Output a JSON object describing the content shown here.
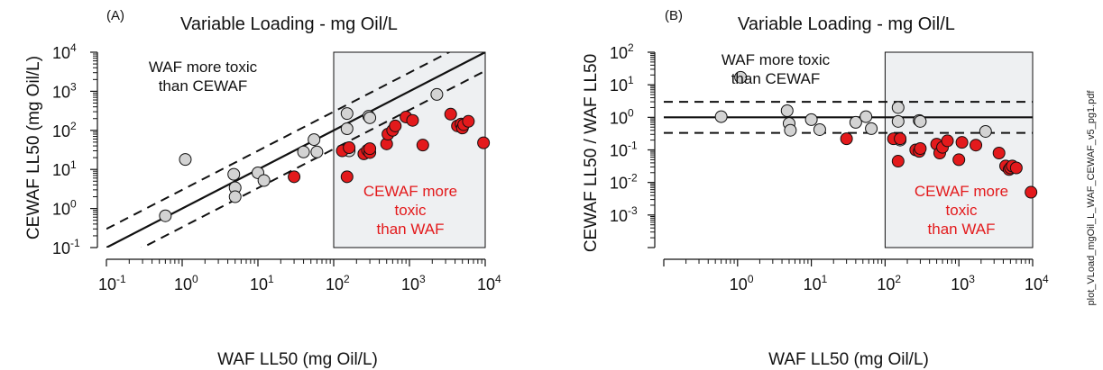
{
  "figure_note": "plot_VLoad_mgOil_L_WAF_CEWAF_v5_pg1.pdf",
  "colors": {
    "waf_more_toxic": "#d3d3d3",
    "cewaf_more_toxic": "#e31a1c",
    "shaded_region": "#eef0f2",
    "annotation_red": "#e31a1c"
  },
  "chart_data": [
    {
      "type": "scatter",
      "panel_label": "(A)",
      "title": "Variable Loading - mg Oil/L",
      "xlabel": "WAF LL50 (mg Oil/L)",
      "ylabel": "CEWAF LL50 (mg Oil/L)",
      "xscale": "log",
      "yscale": "log",
      "xlim": [
        0.1,
        10000
      ],
      "ylim": [
        0.1,
        10000
      ],
      "x_ticks": [
        "10-1",
        "100",
        "101",
        "102",
        "103",
        "104"
      ],
      "y_ticks": [
        "10-1",
        "100",
        "101",
        "102",
        "103",
        "104"
      ],
      "shaded_region": {
        "x_from": 100,
        "x_to": 10000
      },
      "reference_lines": [
        {
          "type": "solid",
          "description": "1:1 line",
          "factor": 1
        },
        {
          "type": "dashed",
          "factor": 3
        },
        {
          "type": "dashed",
          "factor": 0.333
        }
      ],
      "annotations": [
        {
          "lines": [
            "WAF more toxic",
            "than CEWAF"
          ],
          "color": "#111111"
        },
        {
          "lines": [
            "CEWAF more",
            "toxic",
            "than WAF"
          ],
          "color": "#e31a1c"
        }
      ],
      "series": [
        {
          "group": "gray",
          "points": [
            [
              0.6,
              0.65
            ],
            [
              1.1,
              18
            ],
            [
              4.8,
              7.5
            ],
            [
              5,
              3.4
            ],
            [
              5,
              2
            ],
            [
              10,
              8.2
            ],
            [
              12,
              5.2
            ],
            [
              40,
              28
            ],
            [
              55,
              58
            ],
            [
              60,
              28
            ],
            [
              150,
              270
            ],
            [
              150,
              110
            ],
            [
              160,
              30
            ],
            [
              290,
              230
            ],
            [
              300,
              210
            ],
            [
              2300,
              830
            ]
          ]
        },
        {
          "group": "red",
          "points": [
            [
              30,
              6.5
            ],
            [
              130,
              30
            ],
            [
              150,
              6.5
            ],
            [
              160,
              36
            ],
            [
              250,
              25
            ],
            [
              280,
              31
            ],
            [
              300,
              27
            ],
            [
              300,
              34
            ],
            [
              500,
              45
            ],
            [
              520,
              80
            ],
            [
              600,
              100
            ],
            [
              650,
              130
            ],
            [
              900,
              220
            ],
            [
              1100,
              180
            ],
            [
              1500,
              42
            ],
            [
              3500,
              260
            ],
            [
              4300,
              130
            ],
            [
              4800,
              145
            ],
            [
              5000,
              115
            ],
            [
              5200,
              140
            ],
            [
              6000,
              170
            ],
            [
              9500,
              48
            ]
          ]
        }
      ]
    },
    {
      "type": "scatter",
      "panel_label": "(B)",
      "title": "Variable Loading - mg Oil/L",
      "xlabel": "WAF LL50 (mg Oil/L)",
      "ylabel": "CEWAF LL50 / WAF LL50",
      "xscale": "log",
      "yscale": "log",
      "xlim": [
        0.1,
        10000
      ],
      "ylim": [
        0.0001,
        100
      ],
      "x_ticks": [
        "100",
        "101",
        "102",
        "103",
        "104"
      ],
      "y_ticks": [
        "10-3",
        "10-2",
        "10-1",
        "100",
        "101",
        "102"
      ],
      "shaded_region": {
        "x_from": 100,
        "x_to": 10000
      },
      "reference_lines": [
        {
          "type": "solid",
          "y": 1
        },
        {
          "type": "dashed",
          "y": 3
        },
        {
          "type": "dashed",
          "y": 0.333
        }
      ],
      "annotations": [
        {
          "lines": [
            "WAF more toxic",
            "than CEWAF"
          ],
          "color": "#111111"
        },
        {
          "lines": [
            "CEWAF more",
            "toxic",
            "than WAF"
          ],
          "color": "#e31a1c"
        }
      ],
      "series": [
        {
          "group": "gray",
          "points": [
            [
              0.6,
              1.05
            ],
            [
              1.1,
              17
            ],
            [
              4.7,
              1.6
            ],
            [
              5,
              0.65
            ],
            [
              5.2,
              0.4
            ],
            [
              10,
              0.85
            ],
            [
              13,
              0.42
            ],
            [
              40,
              0.7
            ],
            [
              55,
              1.05
            ],
            [
              65,
              0.45
            ],
            [
              150,
              2
            ],
            [
              150,
              0.75
            ],
            [
              160,
              0.2
            ],
            [
              290,
              0.8
            ],
            [
              300,
              0.75
            ],
            [
              2300,
              0.37
            ]
          ]
        },
        {
          "group": "red",
          "points": [
            [
              30,
              0.22
            ],
            [
              130,
              0.22
            ],
            [
              150,
              0.045
            ],
            [
              160,
              0.22
            ],
            [
              260,
              0.1
            ],
            [
              290,
              0.09
            ],
            [
              300,
              0.11
            ],
            [
              500,
              0.15
            ],
            [
              550,
              0.08
            ],
            [
              600,
              0.12
            ],
            [
              700,
              0.19
            ],
            [
              1000,
              0.05
            ],
            [
              1100,
              0.17
            ],
            [
              1700,
              0.14
            ],
            [
              3500,
              0.08
            ],
            [
              4300,
              0.032
            ],
            [
              4800,
              0.025
            ],
            [
              5000,
              0.028
            ],
            [
              5300,
              0.032
            ],
            [
              6000,
              0.028
            ],
            [
              9500,
              0.005
            ]
          ]
        }
      ]
    }
  ]
}
